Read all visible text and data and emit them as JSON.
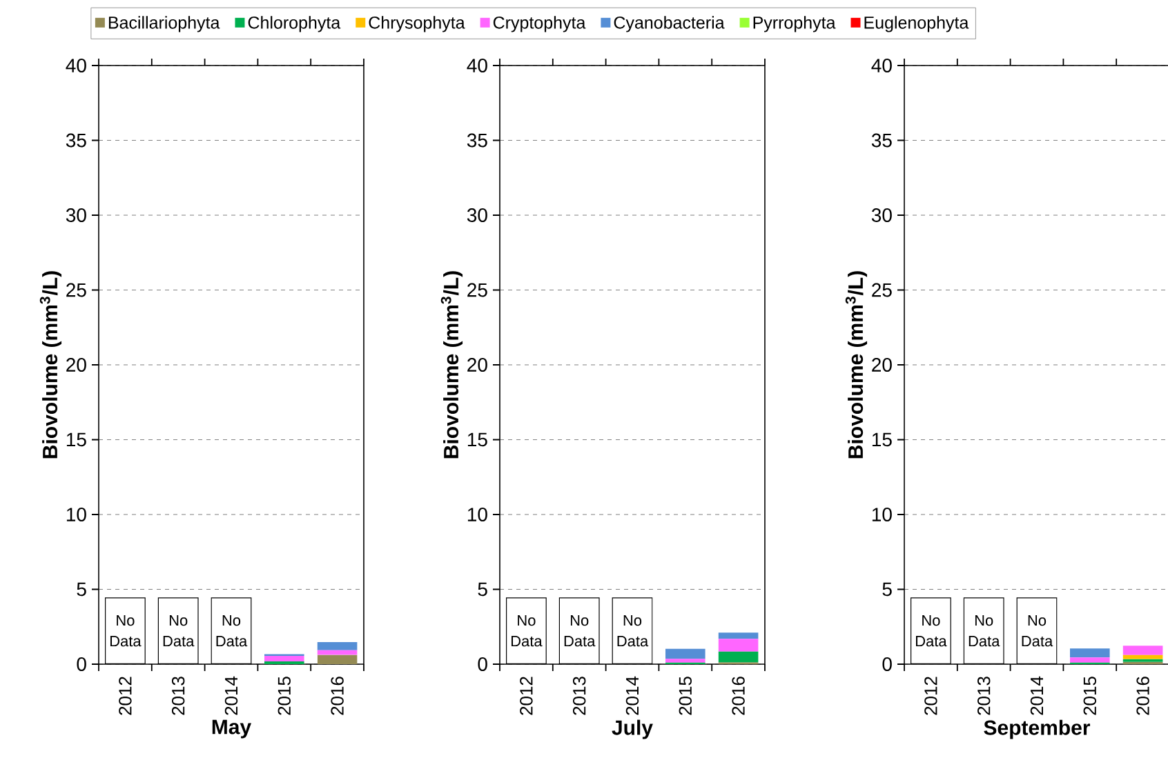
{
  "chart_data": [
    {
      "type": "bar",
      "stacked": true,
      "xlabel": "May",
      "ylabel": "Biovolume (mm$^{3}$/L)",
      "categories": [
        "2012",
        "2013",
        "2014",
        "2015",
        "2016"
      ],
      "ylim": [
        0,
        40
      ],
      "yticks": [
        0,
        5,
        10,
        15,
        20,
        25,
        30,
        35,
        40
      ],
      "grid": "y",
      "legend": "top",
      "annotations": [
        "No Data",
        "No Data",
        "No Data"
      ],
      "series": [
        {
          "name": "Bacillariophyta",
          "color": "#948a54",
          "values": [
            null,
            null,
            null,
            null,
            0.62
          ]
        },
        {
          "name": "Chlorophyta",
          "color": "#00b050",
          "values": [
            null,
            null,
            null,
            0.18,
            0
          ]
        },
        {
          "name": "Chrysophyta",
          "color": "#ffc000",
          "values": [
            null,
            null,
            null,
            0,
            0
          ]
        },
        {
          "name": "Cryptophyta",
          "color": "#ff66ff",
          "values": [
            null,
            null,
            null,
            0.37,
            0.31
          ]
        },
        {
          "name": "Cyanobacteria",
          "color": "#558ed5",
          "values": [
            null,
            null,
            null,
            0.12,
            0.54
          ]
        },
        {
          "name": "Pyrrophyta",
          "color": "#99ff33",
          "values": [
            null,
            null,
            null,
            0,
            0
          ]
        },
        {
          "name": "Euglenophyta",
          "color": "#ff0000",
          "values": [
            null,
            null,
            null,
            0,
            0
          ]
        }
      ]
    },
    {
      "type": "bar",
      "stacked": true,
      "xlabel": "July",
      "ylabel": "Biovolume (mm$^{3}$/L)",
      "categories": [
        "2012",
        "2013",
        "2014",
        "2015",
        "2016"
      ],
      "ylim": [
        0,
        40
      ],
      "yticks": [
        0,
        5,
        10,
        15,
        20,
        25,
        30,
        35,
        40
      ],
      "grid": "y",
      "annotations": [
        "No Data",
        "No Data",
        "No Data"
      ],
      "series": [
        {
          "color": "#948a54",
          "values": [
            null,
            null,
            null,
            null,
            0.12
          ]
        },
        {
          "color": "#00b050",
          "values": [
            null,
            null,
            null,
            0.1,
            0.72
          ]
        },
        {
          "color": "#ffc000",
          "values": [
            null,
            null,
            null,
            0,
            0
          ]
        },
        {
          "color": "#ff66ff",
          "values": [
            null,
            null,
            null,
            0.26,
            0.85
          ]
        },
        {
          "color": "#558ed5",
          "values": [
            null,
            null,
            null,
            0.66,
            0.42
          ]
        },
        {
          "color": "#99ff33",
          "values": [
            null,
            null,
            null,
            0,
            0
          ]
        },
        {
          "color": "#ff0000",
          "values": [
            null,
            null,
            null,
            0,
            0
          ]
        }
      ]
    },
    {
      "type": "bar",
      "stacked": true,
      "xlabel": "September",
      "ylabel": "Biovolume (mm$^{3}$/L)",
      "categories": [
        "2012",
        "2013",
        "2014",
        "2015",
        "2016"
      ],
      "ylim": [
        0,
        40
      ],
      "yticks": [
        0,
        5,
        10,
        15,
        20,
        25,
        30,
        35,
        40
      ],
      "grid": "y",
      "annotations": [
        "No Data",
        "No Data",
        "No Data"
      ],
      "series": [
        {
          "color": "#948a54",
          "values": [
            null,
            null,
            null,
            null,
            0.15
          ]
        },
        {
          "color": "#00b050",
          "values": [
            null,
            null,
            null,
            0.1,
            0.18
          ]
        },
        {
          "color": "#ffc000",
          "values": [
            null,
            null,
            null,
            0,
            0.28
          ]
        },
        {
          "color": "#ff66ff",
          "values": [
            null,
            null,
            null,
            0.35,
            0.62
          ]
        },
        {
          "color": "#558ed5",
          "values": [
            null,
            null,
            null,
            0.6,
            0
          ]
        },
        {
          "color": "#99ff33",
          "values": [
            null,
            null,
            null,
            0,
            0
          ]
        },
        {
          "color": "#ff0000",
          "values": [
            null,
            null,
            null,
            0,
            0
          ]
        }
      ]
    }
  ]
}
